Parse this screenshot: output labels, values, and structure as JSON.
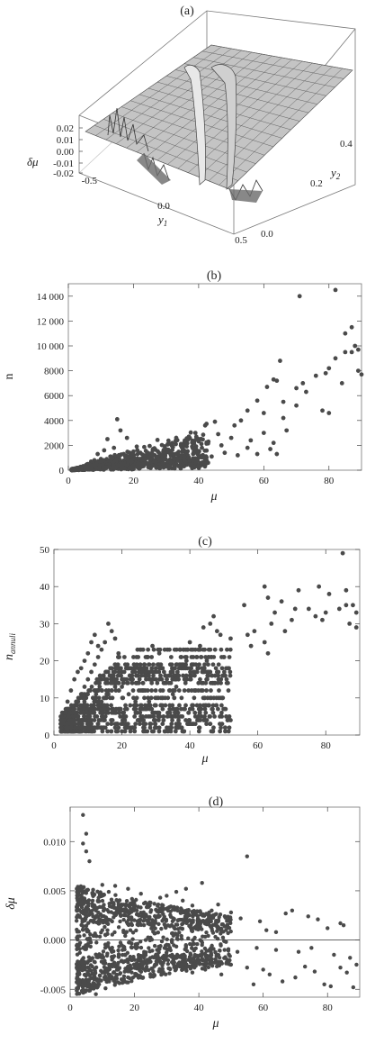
{
  "panels": {
    "a": {
      "label": "(a)"
    },
    "b": {
      "label": "(b)"
    },
    "c": {
      "label": "(c)"
    },
    "d": {
      "label": "(d)"
    }
  },
  "chart_data": [
    {
      "id": "a",
      "type": "surface",
      "title": "(a)",
      "xlabel": "y1",
      "ylabel": "y2",
      "zlabel": "δμ",
      "x_ticks": [
        "-0.5",
        "0.0",
        "0.5"
      ],
      "y_ticks": [
        "0.0",
        "0.2",
        "0.4"
      ],
      "z_ticks": [
        "0.02",
        "0.01",
        "0.00",
        "-0.01",
        "-0.02"
      ],
      "xlim": [
        -0.5,
        0.5
      ],
      "ylim": [
        0.0,
        0.5
      ],
      "zlim": [
        -0.02,
        0.02
      ],
      "grid": true
    },
    {
      "id": "b",
      "type": "scatter",
      "title": "(b)",
      "xlabel": "μ",
      "ylabel": "n",
      "xlim": [
        0,
        90
      ],
      "ylim": [
        0,
        15000
      ],
      "x_ticks": [
        "0",
        "20",
        "40",
        "60",
        "80"
      ],
      "y_ticks": [
        "0",
        "2000",
        "4000",
        "6000",
        "8000",
        "10 000",
        "12 000",
        "14 000"
      ],
      "points": [
        [
          71,
          14000
        ],
        [
          82,
          14500
        ],
        [
          87,
          11500
        ],
        [
          85,
          11000
        ],
        [
          88,
          10000
        ],
        [
          87,
          9500
        ],
        [
          85,
          9500
        ],
        [
          89,
          9700
        ],
        [
          82,
          9000
        ],
        [
          89,
          8000
        ],
        [
          84,
          7000
        ],
        [
          90,
          7700
        ],
        [
          76,
          7600
        ],
        [
          79,
          7800
        ],
        [
          80,
          8200
        ],
        [
          63,
          7300
        ],
        [
          64,
          7200
        ],
        [
          65,
          8800
        ],
        [
          61,
          6700
        ],
        [
          70,
          6600
        ],
        [
          72,
          7000
        ],
        [
          73,
          6300
        ],
        [
          78,
          4800
        ],
        [
          80,
          4600
        ],
        [
          70,
          5200
        ],
        [
          66,
          5500
        ],
        [
          58,
          5600
        ],
        [
          55,
          4800
        ],
        [
          60,
          3000
        ],
        [
          67,
          3200
        ],
        [
          66,
          4200
        ],
        [
          60,
          4600
        ],
        [
          53,
          4000
        ],
        [
          51,
          3600
        ],
        [
          45,
          3900
        ],
        [
          42,
          3600
        ],
        [
          46,
          2900
        ],
        [
          50,
          2600
        ],
        [
          56,
          2400
        ],
        [
          47,
          2000
        ],
        [
          55,
          1800
        ],
        [
          52,
          1200
        ],
        [
          58,
          1300
        ],
        [
          62,
          1700
        ],
        [
          64,
          1300
        ],
        [
          63,
          2200
        ],
        [
          39,
          3000
        ],
        [
          37,
          2700
        ],
        [
          40,
          2500
        ],
        [
          43,
          2300
        ],
        [
          41,
          1800
        ],
        [
          38,
          1900
        ],
        [
          35,
          1500
        ],
        [
          33,
          2100
        ],
        [
          30,
          1400
        ],
        [
          32,
          800
        ],
        [
          28,
          1000
        ],
        [
          25,
          1200
        ],
        [
          26,
          1700
        ],
        [
          24,
          600
        ],
        [
          22,
          900
        ],
        [
          21,
          1900
        ],
        [
          20,
          1500
        ],
        [
          18,
          2600
        ],
        [
          17,
          1300
        ],
        [
          16,
          3200
        ],
        [
          15,
          4100
        ],
        [
          14,
          1800
        ],
        [
          13,
          1100
        ],
        [
          12,
          2500
        ],
        [
          11,
          1600
        ],
        [
          10,
          900
        ],
        [
          9,
          1300
        ],
        [
          8,
          800
        ],
        [
          7,
          700
        ],
        [
          6,
          500
        ],
        [
          5,
          300
        ],
        [
          4,
          200
        ],
        [
          3,
          100
        ],
        [
          2,
          50
        ],
        [
          1,
          20
        ],
        [
          19,
          700
        ],
        [
          23,
          400
        ],
        [
          27,
          500
        ],
        [
          29,
          700
        ],
        [
          31,
          300
        ],
        [
          34,
          900
        ],
        [
          36,
          1200
        ],
        [
          44,
          1100
        ],
        [
          48,
          1400
        ],
        [
          16,
          600
        ],
        [
          14,
          400
        ],
        [
          12,
          300
        ],
        [
          10,
          200
        ],
        [
          18,
          300
        ],
        [
          20,
          400
        ],
        [
          22,
          200
        ]
      ]
    },
    {
      "id": "c",
      "type": "scatter",
      "title": "(c)",
      "xlabel": "μ",
      "ylabel": "n",
      "ylabel_sub": "annuli",
      "xlim": [
        0,
        90
      ],
      "ylim": [
        0,
        50
      ],
      "x_ticks": [
        "0",
        "20",
        "40",
        "60",
        "80"
      ],
      "y_ticks": [
        "0",
        "10",
        "20",
        "30",
        "40",
        "50"
      ],
      "points": [
        [
          85,
          49
        ],
        [
          62,
          40
        ],
        [
          78,
          40
        ],
        [
          72,
          39
        ],
        [
          86,
          39
        ],
        [
          81,
          38
        ],
        [
          63,
          37
        ],
        [
          67,
          36
        ],
        [
          56,
          35
        ],
        [
          71,
          34
        ],
        [
          75,
          34
        ],
        [
          84,
          34
        ],
        [
          86,
          35
        ],
        [
          88,
          35
        ],
        [
          89,
          33
        ],
        [
          87,
          30
        ],
        [
          89,
          29
        ],
        [
          77,
          32
        ],
        [
          79,
          31
        ],
        [
          80,
          33
        ],
        [
          65,
          33
        ],
        [
          64,
          30
        ],
        [
          70,
          31
        ],
        [
          59,
          28
        ],
        [
          68,
          28
        ],
        [
          57,
          27
        ],
        [
          62,
          25
        ],
        [
          58,
          24
        ],
        [
          63,
          22
        ],
        [
          52,
          26
        ],
        [
          48,
          28
        ],
        [
          49,
          27
        ],
        [
          46,
          30
        ],
        [
          44,
          29
        ],
        [
          47,
          32
        ],
        [
          43,
          24
        ],
        [
          42,
          21
        ],
        [
          45,
          20
        ],
        [
          40,
          25
        ],
        [
          41,
          21
        ],
        [
          39,
          20
        ],
        [
          38,
          19
        ],
        [
          36,
          19
        ],
        [
          44,
          18
        ],
        [
          46,
          17
        ],
        [
          43,
          15
        ],
        [
          38,
          16
        ],
        [
          33,
          14
        ],
        [
          30,
          15
        ],
        [
          36,
          13
        ],
        [
          17,
          28
        ],
        [
          16,
          30
        ],
        [
          18,
          26
        ],
        [
          19,
          22
        ],
        [
          21,
          19
        ],
        [
          23,
          16
        ],
        [
          20,
          13
        ],
        [
          22,
          11
        ],
        [
          24,
          9
        ],
        [
          25,
          18
        ],
        [
          27,
          21
        ],
        [
          29,
          24
        ],
        [
          31,
          22
        ],
        [
          34,
          23
        ],
        [
          26,
          12
        ],
        [
          28,
          9
        ],
        [
          30,
          8
        ],
        [
          32,
          10
        ],
        [
          35,
          11
        ],
        [
          12,
          27
        ],
        [
          11,
          25
        ],
        [
          13,
          24
        ],
        [
          10,
          22
        ],
        [
          9,
          20
        ],
        [
          8,
          18
        ],
        [
          7,
          17
        ],
        [
          6,
          15
        ],
        [
          5,
          12
        ],
        [
          4,
          9
        ],
        [
          3,
          6
        ],
        [
          3,
          3
        ],
        [
          4,
          2
        ],
        [
          5,
          1
        ],
        [
          6,
          1
        ],
        [
          7,
          2
        ],
        [
          8,
          3
        ],
        [
          9,
          4
        ],
        [
          10,
          5
        ],
        [
          11,
          6
        ],
        [
          12,
          7
        ],
        [
          13,
          8
        ],
        [
          14,
          9
        ],
        [
          15,
          10
        ],
        [
          16,
          11
        ],
        [
          17,
          12
        ],
        [
          18,
          13
        ],
        [
          19,
          14
        ],
        [
          20,
          15
        ],
        [
          5,
          5
        ],
        [
          6,
          7
        ],
        [
          7,
          9
        ],
        [
          8,
          11
        ],
        [
          9,
          13
        ],
        [
          10,
          15
        ],
        [
          11,
          17
        ],
        [
          12,
          19
        ],
        [
          13,
          21
        ],
        [
          14,
          23
        ],
        [
          15,
          25
        ]
      ]
    },
    {
      "id": "d",
      "type": "scatter",
      "title": "(d)",
      "xlabel": "μ",
      "ylabel": "δμ",
      "xlim": [
        0,
        90
      ],
      "ylim": [
        -0.0058,
        0.0135
      ],
      "x_ticks": [
        "0",
        "20",
        "40",
        "60",
        "80"
      ],
      "y_ticks": [
        "-0.005",
        "0.000",
        "0.005",
        "0.010"
      ],
      "reference_line": 0.0,
      "points": [
        [
          4,
          0.0127
        ],
        [
          5,
          0.0108
        ],
        [
          4,
          0.0098
        ],
        [
          5,
          0.009
        ],
        [
          6,
          0.008
        ],
        [
          55,
          0.0085
        ],
        [
          41,
          0.0058
        ],
        [
          36,
          0.0052
        ],
        [
          33,
          0.0049
        ],
        [
          30,
          0.0045
        ],
        [
          28,
          0.0043
        ],
        [
          22,
          0.0047
        ],
        [
          18,
          0.0052
        ],
        [
          14,
          0.0055
        ],
        [
          12,
          0.0049
        ],
        [
          10,
          0.0056
        ],
        [
          46,
          0.0036
        ],
        [
          50,
          0.0028
        ],
        [
          53,
          0.0022
        ],
        [
          59,
          0.0019
        ],
        [
          67,
          0.0027
        ],
        [
          69,
          0.003
        ],
        [
          74,
          0.0024
        ],
        [
          77,
          0.0021
        ],
        [
          80,
          0.0012
        ],
        [
          84,
          0.0017
        ],
        [
          85,
          0.0015
        ],
        [
          61,
          0.001
        ],
        [
          64,
          0.0008
        ],
        [
          44,
          0.003
        ],
        [
          38,
          0.0035
        ],
        [
          35,
          0.004
        ],
        [
          25,
          0.0038
        ],
        [
          20,
          0.0033
        ],
        [
          16,
          0.0036
        ],
        [
          7,
          0.004
        ],
        [
          8,
          0.003
        ],
        [
          9,
          0.002
        ],
        [
          10,
          0.001
        ],
        [
          11,
          0.0005
        ],
        [
          6,
          -0.004
        ],
        [
          7,
          -0.0049
        ],
        [
          8,
          -0.0055
        ],
        [
          9,
          -0.0045
        ],
        [
          12,
          -0.0035
        ],
        [
          15,
          -0.003
        ],
        [
          20,
          -0.0025
        ],
        [
          25,
          -0.0022
        ],
        [
          30,
          -0.002
        ],
        [
          35,
          -0.0019
        ],
        [
          40,
          -0.0021
        ],
        [
          45,
          -0.0023
        ],
        [
          50,
          -0.0025
        ],
        [
          55,
          -0.0028
        ],
        [
          60,
          -0.003
        ],
        [
          62,
          -0.0035
        ],
        [
          66,
          -0.0042
        ],
        [
          70,
          -0.0038
        ],
        [
          73,
          -0.0027
        ],
        [
          76,
          -0.0032
        ],
        [
          79,
          -0.0045
        ],
        [
          81,
          -0.0047
        ],
        [
          84,
          -0.0028
        ],
        [
          86,
          -0.0033
        ],
        [
          88,
          -0.0048
        ],
        [
          89,
          -0.0025
        ],
        [
          57,
          -0.0045
        ],
        [
          47,
          -0.0035
        ],
        [
          42,
          -0.003
        ],
        [
          38,
          -0.0033
        ],
        [
          33,
          -0.0028
        ],
        [
          28,
          -0.003
        ],
        [
          22,
          -0.0038
        ],
        [
          18,
          -0.0043
        ],
        [
          14,
          -0.004
        ],
        [
          11,
          -0.0049
        ],
        [
          13,
          -0.002
        ],
        [
          17,
          -0.0015
        ],
        [
          23,
          -0.0012
        ],
        [
          27,
          -0.001
        ],
        [
          31,
          -0.0008
        ],
        [
          36,
          -0.0006
        ],
        [
          41,
          -0.0005
        ],
        [
          48,
          -0.001
        ],
        [
          52,
          -0.0012
        ],
        [
          58,
          -0.0008
        ],
        [
          64,
          -0.001
        ],
        [
          71,
          -0.0012
        ],
        [
          75,
          -0.0008
        ],
        [
          82,
          -0.0015
        ],
        [
          87,
          -0.0018
        ]
      ]
    }
  ]
}
